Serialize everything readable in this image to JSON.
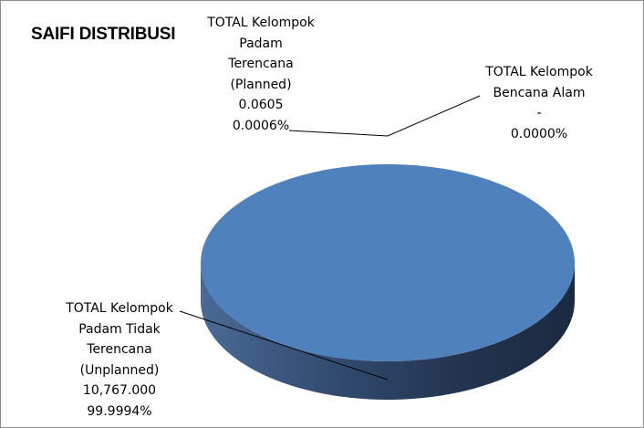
{
  "chart_data": {
    "type": "pie",
    "title": "SAIFI DISTRIBUSI",
    "slices": [
      {
        "category_lines": [
          "TOTAL Kelompok",
          "Padam",
          "Terencana",
          "(Planned)"
        ],
        "value": "0.0605",
        "percent": "0.0006%",
        "numeric_value": 0.0605,
        "color": "#4f81bd"
      },
      {
        "category_lines": [
          "TOTAL Kelompok",
          "Bencana Alam"
        ],
        "value": "-",
        "percent": "0.0000%",
        "numeric_value": 0,
        "color": "#4f81bd"
      },
      {
        "category_lines": [
          "TOTAL Kelompok",
          "Padam Tidak",
          "Terencana",
          "(Unplanned)"
        ],
        "value": "10,767.000",
        "percent": "99.9994%",
        "numeric_value": 10767.0,
        "color": "#4f81bd"
      }
    ],
    "legend": "none",
    "style": "3d-pie"
  }
}
